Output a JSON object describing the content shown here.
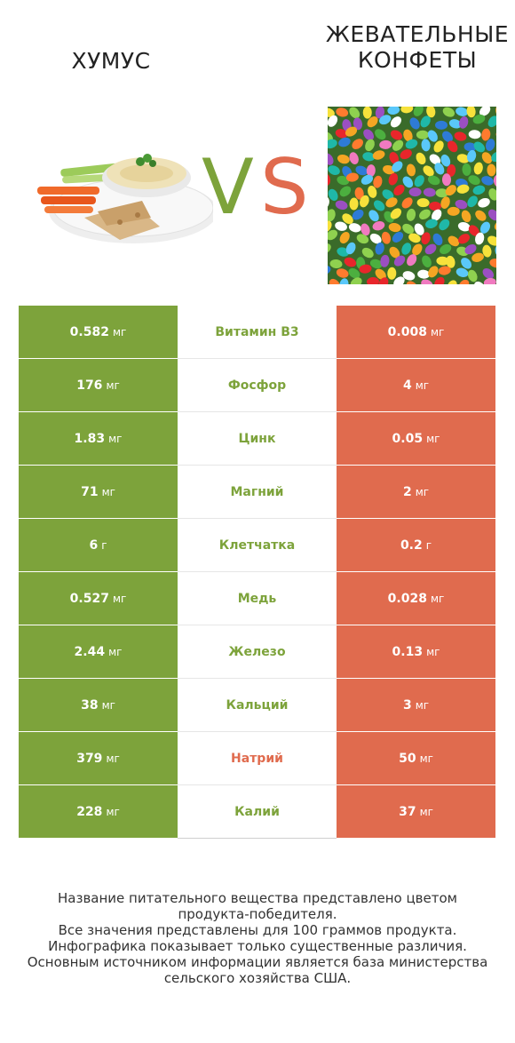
{
  "title_left": "ХУМУС",
  "title_right_line1": "ЖЕВАТЕЛЬНЫЕ",
  "title_right_line2": "КОНФЕТЫ",
  "vs_v": "V",
  "vs_s": "S",
  "colors": {
    "left_winner": "#7da33b",
    "right_winner": "#e06b4e",
    "neutral_bg": "#ffffff"
  },
  "chart_data": {
    "type": "table",
    "columns": [
      "ХУМУС",
      "",
      "ЖЕВАТЕЛЬНЫЕ КОНФЕТЫ"
    ],
    "rows": [
      {
        "left": "0.582",
        "left_unit": "мг",
        "nutrient": "Витамин B3",
        "right": "0.008",
        "right_unit": "мг",
        "winner": "left"
      },
      {
        "left": "176",
        "left_unit": "мг",
        "nutrient": "Фосфор",
        "right": "4",
        "right_unit": "мг",
        "winner": "left"
      },
      {
        "left": "1.83",
        "left_unit": "мг",
        "nutrient": "Цинк",
        "right": "0.05",
        "right_unit": "мг",
        "winner": "left"
      },
      {
        "left": "71",
        "left_unit": "мг",
        "nutrient": "Магний",
        "right": "2",
        "right_unit": "мг",
        "winner": "left"
      },
      {
        "left": "6",
        "left_unit": "г",
        "nutrient": "Клетчатка",
        "right": "0.2",
        "right_unit": "г",
        "winner": "left"
      },
      {
        "left": "0.527",
        "left_unit": "мг",
        "nutrient": "Медь",
        "right": "0.028",
        "right_unit": "мг",
        "winner": "left"
      },
      {
        "left": "2.44",
        "left_unit": "мг",
        "nutrient": "Железо",
        "right": "0.13",
        "right_unit": "мг",
        "winner": "left"
      },
      {
        "left": "38",
        "left_unit": "мг",
        "nutrient": "Кальций",
        "right": "3",
        "right_unit": "мг",
        "winner": "left"
      },
      {
        "left": "379",
        "left_unit": "мг",
        "nutrient": "Натрий",
        "right": "50",
        "right_unit": "мг",
        "winner": "right"
      },
      {
        "left": "228",
        "left_unit": "мг",
        "nutrient": "Калий",
        "right": "37",
        "right_unit": "мг",
        "winner": "left"
      }
    ]
  },
  "footer": [
    "Название питательного вещества представлено цветом",
    "продукта-победителя.",
    "Все значения представлены для 100 граммов продукта.",
    "Инфографика показывает только существенные различия.",
    "Основным источником информации является база министерства",
    "сельского хозяйства США."
  ]
}
